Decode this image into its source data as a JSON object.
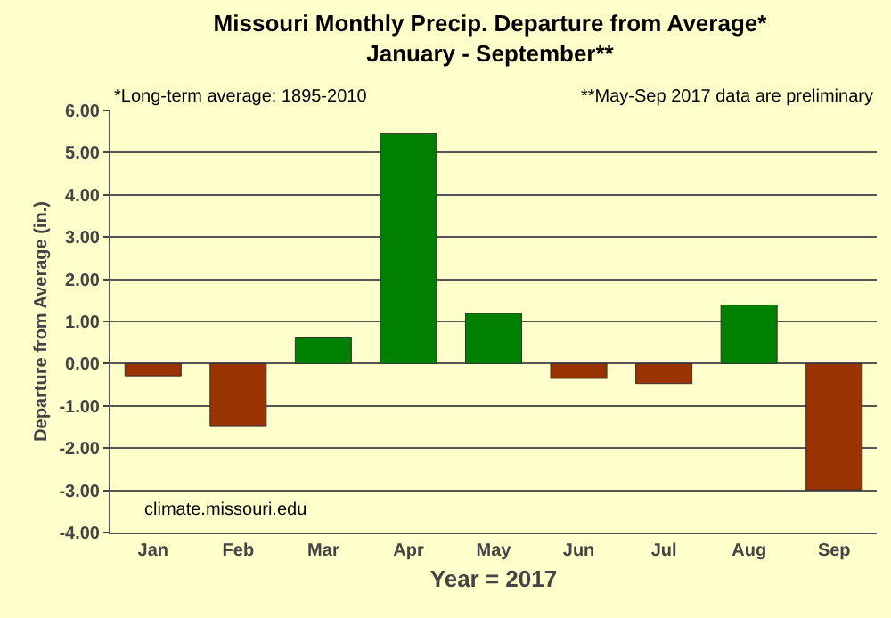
{
  "chart_data": {
    "type": "bar",
    "title": "Missouri Monthly Precip. Departure from Average*\nJanuary - September**",
    "xlabel": "Year = 2017",
    "ylabel": "Departure from Average (in.)",
    "categories": [
      "Jan",
      "Feb",
      "Mar",
      "Apr",
      "May",
      "Jun",
      "Jul",
      "Aug",
      "Sep"
    ],
    "values": [
      -0.29,
      -1.47,
      0.61,
      5.46,
      1.19,
      -0.35,
      -0.47,
      1.39,
      -2.99
    ],
    "colors": [
      "#993300",
      "#993300",
      "#008000",
      "#008000",
      "#008000",
      "#993300",
      "#993300",
      "#008000",
      "#993300"
    ],
    "ylim": [
      -4,
      6
    ],
    "yticks": [
      {
        "value": -4,
        "label": "-4.00"
      },
      {
        "value": -3,
        "label": "-3.00"
      },
      {
        "value": -2,
        "label": "-2.00"
      },
      {
        "value": -1,
        "label": "-1.00"
      },
      {
        "value": 0,
        "label": "0.00"
      },
      {
        "value": 1,
        "label": "1.00"
      },
      {
        "value": 2,
        "label": "2.00"
      },
      {
        "value": 3,
        "label": "3.00"
      },
      {
        "value": 4,
        "label": "4.00"
      },
      {
        "value": 5,
        "label": "5.00"
      },
      {
        "value": 6,
        "label": "6.00"
      }
    ],
    "grid": "y",
    "annotations": [
      "*Long-term average: 1895-2010",
      "**May-Sep 2017 data are preliminary",
      "climate.missouri.edu"
    ]
  }
}
